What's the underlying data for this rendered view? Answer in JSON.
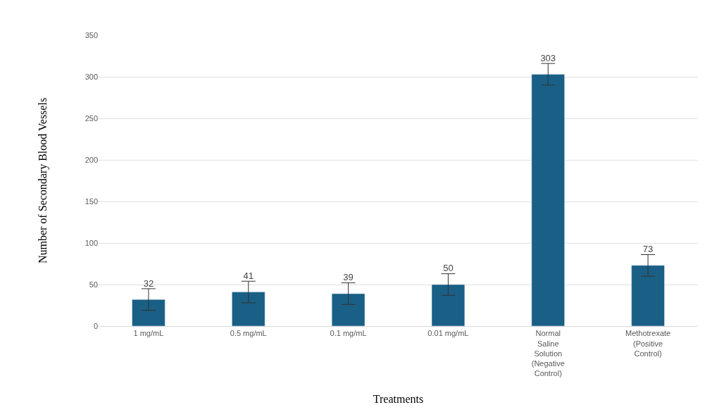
{
  "chart_data": {
    "type": "bar",
    "xlabel": "Treatments",
    "ylabel": "Number of Secondary Blood Vessels",
    "categories": [
      "1 mg/mL",
      "0.5 mg/mL",
      "0.1 mg/mL",
      "0.01 mg/mL",
      "Normal Saline Solution (Negative Control)",
      "Methotrexate (Positive Control)"
    ],
    "values": [
      32,
      41,
      39,
      50,
      303,
      73
    ],
    "errors": [
      13,
      13,
      13,
      13,
      13,
      13
    ],
    "color": "#1a5f85",
    "ylim": [
      0,
      350
    ],
    "yticks": [
      0,
      50,
      100,
      150,
      200,
      250,
      300,
      350
    ],
    "grid": "y",
    "data_labels": true,
    "legend": false
  }
}
